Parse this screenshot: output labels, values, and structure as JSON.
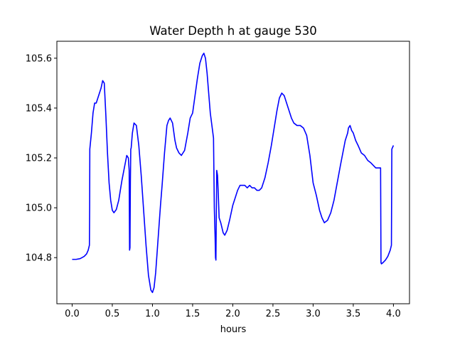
{
  "chart_data": {
    "type": "line",
    "title": "Water Depth h at gauge 530",
    "xlabel": "hours",
    "ylabel": "",
    "xlim": [
      -0.19,
      4.2
    ],
    "ylim": [
      104.615,
      105.668
    ],
    "xticks": [
      0.0,
      0.5,
      1.0,
      1.5,
      2.0,
      2.5,
      3.0,
      3.5,
      4.0
    ],
    "xtick_labels": [
      "0.0",
      "0.5",
      "1.0",
      "1.5",
      "2.0",
      "2.5",
      "3.0",
      "3.5",
      "4.0"
    ],
    "yticks": [
      104.8,
      105.0,
      105.2,
      105.4,
      105.6
    ],
    "ytick_labels": [
      "104.8",
      "105.0",
      "105.2",
      "105.4",
      "105.6"
    ],
    "grid": false,
    "legend": "none",
    "series": [
      {
        "color": "#0000ff",
        "x": [
          0.0,
          0.05,
          0.1,
          0.15,
          0.18,
          0.2,
          0.215,
          0.218,
          0.22,
          0.24,
          0.26,
          0.28,
          0.3,
          0.32,
          0.34,
          0.36,
          0.38,
          0.4,
          0.42,
          0.44,
          0.46,
          0.48,
          0.5,
          0.52,
          0.55,
          0.58,
          0.6,
          0.62,
          0.65,
          0.68,
          0.7,
          0.71,
          0.715,
          0.72,
          0.725,
          0.73,
          0.735,
          0.74,
          0.75,
          0.77,
          0.8,
          0.83,
          0.86,
          0.89,
          0.92,
          0.95,
          0.98,
          1.0,
          1.02,
          1.04,
          1.06,
          1.08,
          1.1,
          1.12,
          1.15,
          1.18,
          1.2,
          1.22,
          1.25,
          1.28,
          1.3,
          1.33,
          1.36,
          1.4,
          1.44,
          1.47,
          1.5,
          1.53,
          1.56,
          1.59,
          1.62,
          1.64,
          1.66,
          1.68,
          1.7,
          1.72,
          1.74,
          1.76,
          1.77,
          1.78,
          1.785,
          1.79,
          1.8,
          1.81,
          1.82,
          1.83,
          1.85,
          1.88,
          1.9,
          1.93,
          1.96,
          2.0,
          2.03,
          2.06,
          2.09,
          2.12,
          2.15,
          2.18,
          2.21,
          2.24,
          2.27,
          2.3,
          2.33,
          2.36,
          2.4,
          2.44,
          2.48,
          2.52,
          2.55,
          2.58,
          2.61,
          2.64,
          2.67,
          2.7,
          2.73,
          2.76,
          2.8,
          2.84,
          2.88,
          2.92,
          2.96,
          3.0,
          3.04,
          3.08,
          3.11,
          3.14,
          3.18,
          3.22,
          3.26,
          3.3,
          3.34,
          3.37,
          3.4,
          3.42,
          3.43,
          3.44,
          3.46,
          3.48,
          3.5,
          3.53,
          3.56,
          3.6,
          3.64,
          3.68,
          3.72,
          3.75,
          3.78,
          3.8,
          3.84,
          3.845,
          3.85,
          3.87,
          3.9,
          3.93,
          3.96,
          3.975,
          3.98,
          4.0
        ],
        "values": [
          104.793,
          104.793,
          104.796,
          104.805,
          104.815,
          104.83,
          104.85,
          105.0,
          105.235,
          105.3,
          105.38,
          105.42,
          105.42,
          105.44,
          105.46,
          105.48,
          105.51,
          105.5,
          105.37,
          105.22,
          105.1,
          105.03,
          104.99,
          104.98,
          104.993,
          105.03,
          105.07,
          105.11,
          105.16,
          105.21,
          105.2,
          105.15,
          104.83,
          104.84,
          105.1,
          105.235,
          105.24,
          105.26,
          105.3,
          105.34,
          105.33,
          105.25,
          105.13,
          104.99,
          104.85,
          104.73,
          104.67,
          104.66,
          104.68,
          104.74,
          104.83,
          104.92,
          105.01,
          105.09,
          105.22,
          105.33,
          105.35,
          105.36,
          105.34,
          105.27,
          105.24,
          105.22,
          105.21,
          105.23,
          105.3,
          105.36,
          105.38,
          105.45,
          105.52,
          105.58,
          105.61,
          105.62,
          105.6,
          105.54,
          105.46,
          105.38,
          105.33,
          105.28,
          105.0,
          104.88,
          104.8,
          104.79,
          105.15,
          105.13,
          105.05,
          104.96,
          104.94,
          104.9,
          104.89,
          104.91,
          104.95,
          105.01,
          105.04,
          105.07,
          105.09,
          105.09,
          105.09,
          105.08,
          105.09,
          105.08,
          105.08,
          105.07,
          105.07,
          105.08,
          105.12,
          105.18,
          105.25,
          105.33,
          105.39,
          105.44,
          105.46,
          105.45,
          105.42,
          105.39,
          105.36,
          105.34,
          105.33,
          105.33,
          105.32,
          105.29,
          105.21,
          105.1,
          105.05,
          104.99,
          104.96,
          104.94,
          104.95,
          104.98,
          105.03,
          105.1,
          105.17,
          105.22,
          105.27,
          105.29,
          105.3,
          105.32,
          105.33,
          105.31,
          105.3,
          105.27,
          105.25,
          105.22,
          105.21,
          105.19,
          105.18,
          105.17,
          105.16,
          105.16,
          105.16,
          104.78,
          104.775,
          104.78,
          104.79,
          104.805,
          104.83,
          104.85,
          105.235,
          105.25
        ]
      }
    ]
  }
}
